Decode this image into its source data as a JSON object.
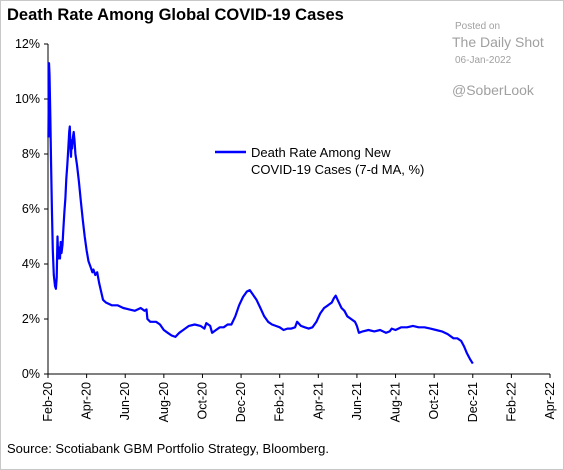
{
  "chart_data": {
    "type": "line",
    "title": "Death Rate Among Global COVID-19 Cases",
    "source": "Source: Scotiabank GBM Portfolio Strategy, Bloomberg.",
    "watermark": {
      "posted": "Posted on",
      "site": "The Daily Shot",
      "date": "06-Jan-2022",
      "handle": "@SoberLook"
    },
    "y_ticks": [
      "0%",
      "2%",
      "4%",
      "6%",
      "8%",
      "10%",
      "12%"
    ],
    "x_ticks": [
      "Feb-20",
      "Apr-20",
      "Jun-20",
      "Aug-20",
      "Oct-20",
      "Dec-20",
      "Feb-21",
      "Apr-21",
      "Jun-21",
      "Aug-21",
      "Oct-21",
      "Dec-21",
      "Feb-22",
      "Apr-22"
    ],
    "ylim": [
      0,
      12
    ],
    "xlim_months": [
      0,
      26
    ],
    "legend": [
      "Death Rate Among New",
      "COVID-19 Cases (7-d MA, %)"
    ],
    "line_color": "#0000ff",
    "series": [
      {
        "name": "Death Rate Among New COVID-19 Cases (7-d MA, %)",
        "points": [
          [
            0.02,
            8.6
          ],
          [
            0.05,
            11.3
          ],
          [
            0.08,
            10.9
          ],
          [
            0.12,
            9.4
          ],
          [
            0.16,
            7.6
          ],
          [
            0.2,
            6.0
          ],
          [
            0.25,
            4.5
          ],
          [
            0.3,
            3.6
          ],
          [
            0.36,
            3.2
          ],
          [
            0.41,
            3.1
          ],
          [
            0.45,
            3.5
          ],
          [
            0.49,
            5.0
          ],
          [
            0.53,
            4.2
          ],
          [
            0.57,
            4.6
          ],
          [
            0.62,
            4.2
          ],
          [
            0.66,
            4.8
          ],
          [
            0.7,
            4.4
          ],
          [
            0.75,
            4.7
          ],
          [
            0.8,
            5.3
          ],
          [
            0.85,
            5.9
          ],
          [
            0.9,
            6.4
          ],
          [
            0.95,
            7.1
          ],
          [
            1.0,
            7.6
          ],
          [
            1.05,
            8.2
          ],
          [
            1.1,
            8.8
          ],
          [
            1.13,
            9.0
          ],
          [
            1.16,
            8.3
          ],
          [
            1.19,
            7.9
          ],
          [
            1.22,
            8.5
          ],
          [
            1.25,
            8.2
          ],
          [
            1.29,
            8.6
          ],
          [
            1.33,
            8.8
          ],
          [
            1.37,
            8.5
          ],
          [
            1.42,
            8.0
          ],
          [
            1.5,
            7.6
          ],
          [
            1.6,
            7.0
          ],
          [
            1.7,
            6.3
          ],
          [
            1.8,
            5.6
          ],
          [
            1.9,
            5.0
          ],
          [
            2.0,
            4.5
          ],
          [
            2.1,
            4.1
          ],
          [
            2.2,
            3.9
          ],
          [
            2.3,
            3.7
          ],
          [
            2.35,
            3.8
          ],
          [
            2.45,
            3.6
          ],
          [
            2.55,
            3.7
          ],
          [
            2.65,
            3.3
          ],
          [
            2.75,
            3.0
          ],
          [
            2.85,
            2.7
          ],
          [
            3.0,
            2.6
          ],
          [
            3.3,
            2.5
          ],
          [
            3.6,
            2.5
          ],
          [
            3.9,
            2.4
          ],
          [
            4.2,
            2.35
          ],
          [
            4.5,
            2.3
          ],
          [
            4.8,
            2.4
          ],
          [
            5.0,
            2.3
          ],
          [
            5.1,
            2.35
          ],
          [
            5.15,
            2.0
          ],
          [
            5.3,
            1.9
          ],
          [
            5.6,
            1.9
          ],
          [
            5.8,
            1.8
          ],
          [
            6.0,
            1.6
          ],
          [
            6.2,
            1.5
          ],
          [
            6.4,
            1.4
          ],
          [
            6.6,
            1.35
          ],
          [
            6.8,
            1.5
          ],
          [
            7.0,
            1.6
          ],
          [
            7.3,
            1.75
          ],
          [
            7.6,
            1.8
          ],
          [
            7.9,
            1.75
          ],
          [
            8.1,
            1.65
          ],
          [
            8.2,
            1.85
          ],
          [
            8.4,
            1.75
          ],
          [
            8.5,
            1.5
          ],
          [
            8.7,
            1.6
          ],
          [
            8.9,
            1.7
          ],
          [
            9.1,
            1.7
          ],
          [
            9.3,
            1.8
          ],
          [
            9.5,
            1.8
          ],
          [
            9.7,
            2.1
          ],
          [
            9.9,
            2.5
          ],
          [
            10.1,
            2.8
          ],
          [
            10.3,
            3.0
          ],
          [
            10.45,
            3.05
          ],
          [
            10.6,
            2.9
          ],
          [
            10.8,
            2.7
          ],
          [
            11.0,
            2.4
          ],
          [
            11.2,
            2.1
          ],
          [
            11.4,
            1.9
          ],
          [
            11.6,
            1.8
          ],
          [
            11.8,
            1.75
          ],
          [
            12.0,
            1.7
          ],
          [
            12.2,
            1.6
          ],
          [
            12.4,
            1.65
          ],
          [
            12.6,
            1.65
          ],
          [
            12.8,
            1.7
          ],
          [
            12.9,
            1.9
          ],
          [
            13.1,
            1.75
          ],
          [
            13.3,
            1.7
          ],
          [
            13.5,
            1.65
          ],
          [
            13.7,
            1.7
          ],
          [
            13.9,
            1.9
          ],
          [
            14.1,
            2.2
          ],
          [
            14.3,
            2.4
          ],
          [
            14.5,
            2.5
          ],
          [
            14.7,
            2.6
          ],
          [
            14.8,
            2.75
          ],
          [
            14.9,
            2.85
          ],
          [
            15.0,
            2.7
          ],
          [
            15.2,
            2.4
          ],
          [
            15.35,
            2.3
          ],
          [
            15.5,
            2.1
          ],
          [
            15.7,
            2.0
          ],
          [
            15.9,
            1.9
          ],
          [
            16.0,
            1.75
          ],
          [
            16.1,
            1.5
          ],
          [
            16.3,
            1.55
          ],
          [
            16.6,
            1.6
          ],
          [
            16.9,
            1.55
          ],
          [
            17.2,
            1.6
          ],
          [
            17.5,
            1.5
          ],
          [
            17.7,
            1.55
          ],
          [
            17.8,
            1.65
          ],
          [
            18.0,
            1.6
          ],
          [
            18.3,
            1.7
          ],
          [
            18.6,
            1.7
          ],
          [
            18.9,
            1.75
          ],
          [
            19.2,
            1.7
          ],
          [
            19.5,
            1.7
          ],
          [
            19.8,
            1.65
          ],
          [
            20.1,
            1.6
          ],
          [
            20.4,
            1.55
          ],
          [
            20.7,
            1.45
          ],
          [
            21.0,
            1.3
          ],
          [
            21.2,
            1.3
          ],
          [
            21.4,
            1.2
          ],
          [
            21.55,
            1.0
          ],
          [
            21.7,
            0.75
          ],
          [
            21.85,
            0.55
          ],
          [
            22.0,
            0.38
          ]
        ]
      }
    ]
  }
}
